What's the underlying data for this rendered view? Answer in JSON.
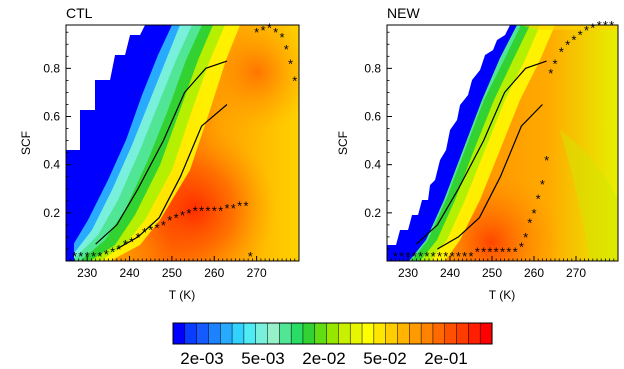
{
  "chart_data": [
    {
      "type": "heatmap",
      "title": "CTL",
      "xlabel": "T (K)",
      "ylabel": "SCF",
      "xlim": [
        225,
        280
      ],
      "ylim": [
        0,
        0.98
      ],
      "xticks": [
        230,
        240,
        250,
        260,
        270
      ],
      "yticks": [
        0.2,
        0.4,
        0.6,
        0.8
      ],
      "xtick_labels": [
        "230",
        "240",
        "250",
        "260",
        "270"
      ],
      "ytick_labels": [
        "0.2",
        "0.4",
        "0.6",
        "0.8"
      ],
      "lines": [
        {
          "x": [
            232,
            237,
            242,
            248,
            253,
            258,
            263
          ],
          "y": [
            0.07,
            0.15,
            0.3,
            0.5,
            0.7,
            0.8,
            0.83
          ]
        },
        {
          "x": [
            237,
            242,
            247,
            252,
            257,
            263
          ],
          "y": [
            0.05,
            0.1,
            0.18,
            0.35,
            0.56,
            0.65
          ]
        }
      ],
      "markers": [
        {
          "x": 227,
          "y": 0.02
        },
        {
          "x": 228.5,
          "y": 0.02
        },
        {
          "x": 230,
          "y": 0.02
        },
        {
          "x": 231.5,
          "y": 0.02
        },
        {
          "x": 233,
          "y": 0.02
        },
        {
          "x": 234.5,
          "y": 0.03
        },
        {
          "x": 236,
          "y": 0.04
        },
        {
          "x": 237.5,
          "y": 0.05
        },
        {
          "x": 239,
          "y": 0.07
        },
        {
          "x": 240.5,
          "y": 0.08
        },
        {
          "x": 242,
          "y": 0.1
        },
        {
          "x": 243.5,
          "y": 0.12
        },
        {
          "x": 245,
          "y": 0.13
        },
        {
          "x": 246.5,
          "y": 0.14
        },
        {
          "x": 248,
          "y": 0.15
        },
        {
          "x": 249.5,
          "y": 0.17
        },
        {
          "x": 251,
          "y": 0.18
        },
        {
          "x": 252.5,
          "y": 0.19
        },
        {
          "x": 254,
          "y": 0.2
        },
        {
          "x": 255.5,
          "y": 0.21
        },
        {
          "x": 257,
          "y": 0.21
        },
        {
          "x": 258.5,
          "y": 0.21
        },
        {
          "x": 260,
          "y": 0.21
        },
        {
          "x": 261.5,
          "y": 0.21
        },
        {
          "x": 263,
          "y": 0.22
        },
        {
          "x": 264.5,
          "y": 0.22
        },
        {
          "x": 266,
          "y": 0.23
        },
        {
          "x": 267.5,
          "y": 0.23
        },
        {
          "x": 268.5,
          "y": 0.02
        },
        {
          "x": 270,
          "y": 0.95
        },
        {
          "x": 271.5,
          "y": 0.96
        },
        {
          "x": 273,
          "y": 0.97
        },
        {
          "x": 274.5,
          "y": 0.95
        },
        {
          "x": 276,
          "y": 0.93
        },
        {
          "x": 277,
          "y": 0.88
        },
        {
          "x": 278,
          "y": 0.82
        },
        {
          "x": 279,
          "y": 0.75
        }
      ]
    },
    {
      "type": "heatmap",
      "title": "NEW",
      "xlabel": "T (K)",
      "ylabel": "SCF",
      "xlim": [
        225,
        280
      ],
      "ylim": [
        0,
        0.98
      ],
      "xticks": [
        230,
        240,
        250,
        260,
        270
      ],
      "yticks": [
        0.2,
        0.4,
        0.6,
        0.8
      ],
      "xtick_labels": [
        "230",
        "240",
        "250",
        "260",
        "270"
      ],
      "ytick_labels": [
        "0.2",
        "0.4",
        "0.6",
        "0.8"
      ],
      "lines": [
        {
          "x": [
            232,
            237,
            242,
            248,
            253,
            258,
            263
          ],
          "y": [
            0.07,
            0.15,
            0.3,
            0.5,
            0.7,
            0.8,
            0.83
          ]
        },
        {
          "x": [
            237,
            242,
            247,
            252,
            257,
            262
          ],
          "y": [
            0.05,
            0.1,
            0.18,
            0.35,
            0.56,
            0.65
          ]
        }
      ],
      "markers": [
        {
          "x": 227,
          "y": 0.02
        },
        {
          "x": 228.5,
          "y": 0.02
        },
        {
          "x": 230,
          "y": 0.02
        },
        {
          "x": 231.5,
          "y": 0.02
        },
        {
          "x": 233,
          "y": 0.02
        },
        {
          "x": 234.5,
          "y": 0.02
        },
        {
          "x": 236,
          "y": 0.02
        },
        {
          "x": 237.5,
          "y": 0.02
        },
        {
          "x": 239,
          "y": 0.02
        },
        {
          "x": 240.5,
          "y": 0.02
        },
        {
          "x": 242,
          "y": 0.02
        },
        {
          "x": 243.5,
          "y": 0.02
        },
        {
          "x": 245,
          "y": 0.02
        },
        {
          "x": 246.5,
          "y": 0.04
        },
        {
          "x": 248,
          "y": 0.04
        },
        {
          "x": 249.5,
          "y": 0.04
        },
        {
          "x": 251,
          "y": 0.04
        },
        {
          "x": 252.5,
          "y": 0.04
        },
        {
          "x": 254,
          "y": 0.04
        },
        {
          "x": 255.5,
          "y": 0.04
        },
        {
          "x": 257,
          "y": 0.06
        },
        {
          "x": 258,
          "y": 0.1
        },
        {
          "x": 259,
          "y": 0.16
        },
        {
          "x": 260,
          "y": 0.2
        },
        {
          "x": 261,
          "y": 0.26
        },
        {
          "x": 262,
          "y": 0.32
        },
        {
          "x": 263,
          "y": 0.42
        },
        {
          "x": 264,
          "y": 0.78
        },
        {
          "x": 265,
          "y": 0.82
        },
        {
          "x": 266.5,
          "y": 0.87
        },
        {
          "x": 268,
          "y": 0.9
        },
        {
          "x": 269.5,
          "y": 0.92
        },
        {
          "x": 271,
          "y": 0.94
        },
        {
          "x": 272.5,
          "y": 0.96
        },
        {
          "x": 274,
          "y": 0.97
        },
        {
          "x": 275.5,
          "y": 0.98
        },
        {
          "x": 277,
          "y": 0.98
        },
        {
          "x": 278.5,
          "y": 0.98
        }
      ]
    }
  ],
  "colorbar": {
    "labels": [
      "2e-03",
      "5e-03",
      "2e-02",
      "5e-02",
      "2e-01"
    ],
    "colors": [
      "#0000ff",
      "#0a3cff",
      "#145aff",
      "#1e82ff",
      "#28aaff",
      "#32d2ff",
      "#50ecf5",
      "#78f0dc",
      "#96f0c8",
      "#50e696",
      "#28dc64",
      "#32d232",
      "#64dc14",
      "#96e600",
      "#c8f000",
      "#e6f500",
      "#ffff00",
      "#ffe600",
      "#ffcd00",
      "#ffb400",
      "#ff9b00",
      "#ff8200",
      "#ff6900",
      "#ff5000",
      "#ff3c00",
      "#ff1e00",
      "#ff0000"
    ]
  }
}
